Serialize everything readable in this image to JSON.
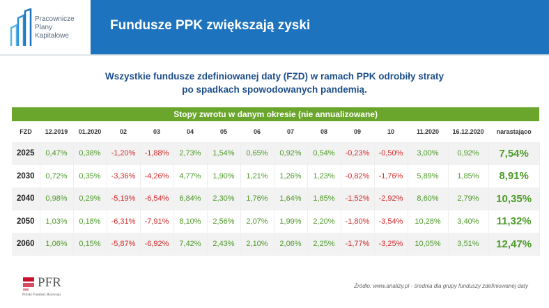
{
  "logo": {
    "line1": "Pracownicze",
    "line2": "Plany",
    "line3": "Kapitałowe"
  },
  "header": {
    "title": "Fundusze PPK zwiększają zyski"
  },
  "subtitle": {
    "line1": "Wszystkie fundusze zdefiniowanej daty (FZD) w ramach PPK odrobiły straty",
    "line2": "po spadkach spowodowanych pandemią."
  },
  "table": {
    "caption": "Stopy zwrotu w danym okresie (nie annualizowane)",
    "columns": [
      "FZD",
      "12.2019",
      "01.2020",
      "02",
      "03",
      "04",
      "05",
      "06",
      "07",
      "08",
      "09",
      "10",
      "11.2020",
      "16.12.2020",
      "narastająco"
    ],
    "rows": [
      {
        "fzd": "2025",
        "values": [
          "0,47%",
          "0,38%",
          "-1,20%",
          "-1,88%",
          "2,73%",
          "1,54%",
          "0,65%",
          "0,92%",
          "0,54%",
          "-0,23%",
          "-0,50%",
          "3,00%",
          "0,92%"
        ],
        "cumulative": "7,54%"
      },
      {
        "fzd": "2030",
        "values": [
          "0,72%",
          "0,35%",
          "-3,36%",
          "-4,26%",
          "4,77%",
          "1,90%",
          "1,21%",
          "1,26%",
          "1,23%",
          "-0,82%",
          "-1,76%",
          "5,89%",
          "1,85%"
        ],
        "cumulative": "8,91%"
      },
      {
        "fzd": "2040",
        "values": [
          "0,98%",
          "0,29%",
          "-5,19%",
          "-6,54%",
          "6,84%",
          "2,30%",
          "1,76%",
          "1,64%",
          "1,85%",
          "-1,52%",
          "-2,92%",
          "8,60%",
          "2,79%"
        ],
        "cumulative": "10,35%"
      },
      {
        "fzd": "2050",
        "values": [
          "1,03%",
          "0,18%",
          "-6,31%",
          "-7,91%",
          "8,10%",
          "2,56%",
          "2,07%",
          "1,99%",
          "2,20%",
          "-1,80%",
          "-3,54%",
          "10,28%",
          "3,40%"
        ],
        "cumulative": "11,32%"
      },
      {
        "fzd": "2060",
        "values": [
          "1,06%",
          "0,15%",
          "-5,87%",
          "-6,92%",
          "7,42%",
          "2,43%",
          "2,10%",
          "2,06%",
          "2,25%",
          "-1,77%",
          "-3,25%",
          "10,05%",
          "3,51%"
        ],
        "cumulative": "12,47%"
      }
    ]
  },
  "source": "Źródło: www.analizy.pl - średnia dla grupy funduszy zdefiniowanej daty",
  "pfr": {
    "name": "PFR",
    "subtitle": "Polski Fundusz Rozwoju"
  },
  "colors": {
    "header_blue": "#1e73be",
    "title_blue": "#1d4e89",
    "accent_green": "#6aa52c",
    "positive": "#4c9a28",
    "negative": "#d42a2a"
  }
}
